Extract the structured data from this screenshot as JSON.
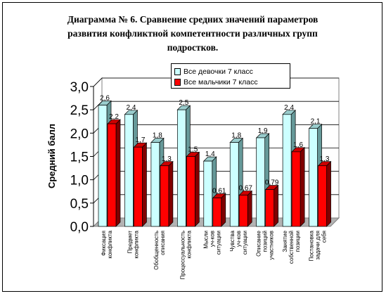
{
  "title": "Диаграмма № 6.    Сравнение средних значений параметров\nразвития конфликтной компетентности различных групп\nподростков.",
  "colors": {
    "series_girls": "#ccffff",
    "series_boys": "#ff0000",
    "wall": "#ffffff",
    "floor": "#b3b3b3"
  },
  "chart_data": {
    "type": "bar",
    "title": "Диаграмма № 6.    Сравнение средних значений параметров развития конфликтной компетентности различных групп подростков.",
    "xlabel": "",
    "ylabel": "Средний балл",
    "ylim": [
      0,
      3
    ],
    "yticks": [
      "0,0",
      "0,5",
      "1,0",
      "1,5",
      "2,0",
      "2,5",
      "3,0"
    ],
    "grid": true,
    "legend_position": "top-right",
    "categories": [
      "Фиксация конфликта",
      "Предмет конфликта",
      "Обобщенность описания",
      "Процессуальность конфликта",
      "Мысли уч-ков ситуации",
      "Чувства уч-ков ситуации",
      "Описание позиций участников",
      "Занятие собственной позиции",
      "Постановка задачи для себя"
    ],
    "series": [
      {
        "name": "Все девочки 7 класс",
        "values": [
          2.6,
          2.4,
          1.8,
          2.5,
          1.4,
          1.8,
          1.9,
          2.4,
          2.1
        ],
        "labels": [
          "2,6",
          "2,4",
          "1,8",
          "2,5",
          "1,4",
          "1,8",
          "1,9",
          "2,4",
          "2,1"
        ]
      },
      {
        "name": "Все мальчики 7 класс",
        "values": [
          2.2,
          1.7,
          1.3,
          1.5,
          0.61,
          0.67,
          0.79,
          1.6,
          1.3
        ],
        "labels": [
          "2,2",
          "1,7",
          "1,3",
          "1,5",
          "0,61",
          "0,67",
          "0,79",
          "1,6",
          "1,3"
        ]
      }
    ]
  }
}
